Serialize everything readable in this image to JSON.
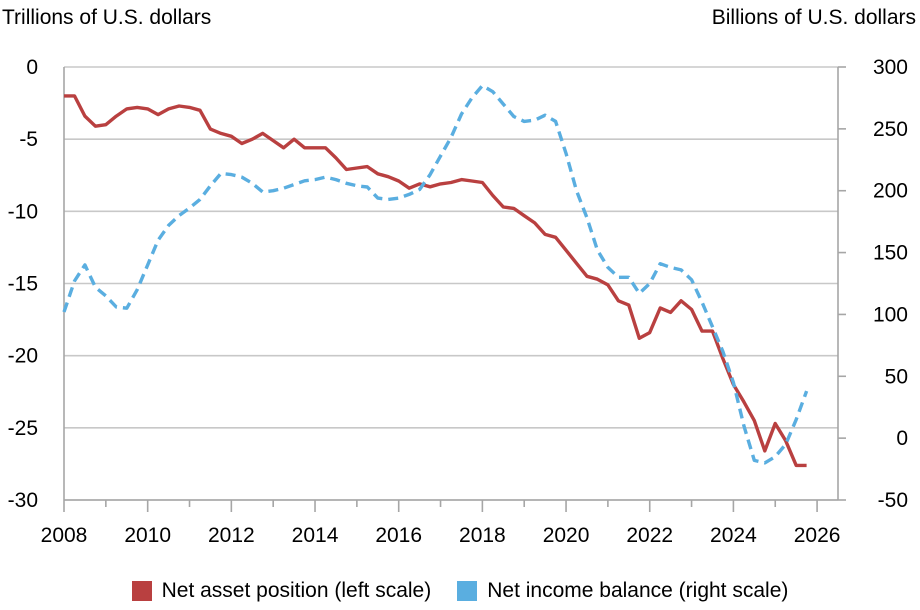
{
  "chart_data": {
    "type": "line",
    "left_axis_title": "Trillions of U.S. dollars",
    "right_axis_title": "Billions of U.S. dollars",
    "xlim": [
      2008,
      2026.5
    ],
    "xticks": [
      "2008",
      "2010",
      "2012",
      "2014",
      "2016",
      "2018",
      "2020",
      "2022",
      "2024",
      "2026"
    ],
    "ylim_left": [
      -30,
      0
    ],
    "yticks_left": [
      "0",
      "-5",
      "-10",
      "-15",
      "-20",
      "-25",
      "-30"
    ],
    "ylim_right": [
      -50,
      300
    ],
    "yticks_right": [
      "300",
      "250",
      "200",
      "150",
      "100",
      "50",
      "0",
      "-50"
    ],
    "grid": "horizontal",
    "legend_position": "bottom",
    "series": [
      {
        "name": "Net asset position (left scale)",
        "axis": "left",
        "color": "#b94040",
        "style": "solid",
        "x": [
          2008.0,
          2008.25,
          2008.5,
          2008.75,
          2009.0,
          2009.25,
          2009.5,
          2009.75,
          2010.0,
          2010.25,
          2010.5,
          2010.75,
          2011.0,
          2011.25,
          2011.5,
          2011.75,
          2012.0,
          2012.25,
          2012.5,
          2012.75,
          2013.0,
          2013.25,
          2013.5,
          2013.75,
          2014.0,
          2014.25,
          2014.5,
          2014.75,
          2015.0,
          2015.25,
          2015.5,
          2015.75,
          2016.0,
          2016.25,
          2016.5,
          2016.75,
          2017.0,
          2017.25,
          2017.5,
          2017.75,
          2018.0,
          2018.25,
          2018.5,
          2018.75,
          2019.0,
          2019.25,
          2019.5,
          2019.75,
          2020.0,
          2020.25,
          2020.5,
          2020.75,
          2021.0,
          2021.25,
          2021.5,
          2021.75,
          2022.0,
          2022.25,
          2022.5,
          2022.75,
          2023.0,
          2023.25,
          2023.5,
          2023.75,
          2024.0,
          2024.25,
          2024.5,
          2024.75,
          2025.0,
          2025.25,
          2025.5,
          2025.75
        ],
        "values": [
          -2.0,
          -2.0,
          -3.4,
          -4.1,
          -4.0,
          -3.4,
          -2.9,
          -2.8,
          -2.9,
          -3.3,
          -2.9,
          -2.7,
          -2.8,
          -3.0,
          -4.3,
          -4.6,
          -4.8,
          -5.3,
          -5.0,
          -4.6,
          -5.1,
          -5.6,
          -5.0,
          -5.6,
          -5.6,
          -5.6,
          -6.3,
          -7.1,
          -7.0,
          -6.9,
          -7.4,
          -7.6,
          -7.9,
          -8.4,
          -8.1,
          -8.3,
          -8.1,
          -8.0,
          -7.8,
          -7.9,
          -8.0,
          -8.9,
          -9.7,
          -9.8,
          -10.3,
          -10.8,
          -11.6,
          -11.8,
          -12.7,
          -13.6,
          -14.5,
          -14.7,
          -15.1,
          -16.2,
          -16.5,
          -18.8,
          -18.4,
          -16.7,
          -17.0,
          -16.2,
          -16.8,
          -18.3,
          -18.3,
          -20.2,
          -22.0,
          -23.2,
          -24.5,
          -26.6,
          -24.7,
          -25.9,
          -27.6,
          -27.6
        ]
      },
      {
        "name": "Net income balance (right scale)",
        "axis": "right",
        "color": "#5aaee0",
        "style": "dashed",
        "x": [
          2008.0,
          2008.25,
          2008.5,
          2008.75,
          2009.0,
          2009.25,
          2009.5,
          2009.75,
          2010.0,
          2010.25,
          2010.5,
          2010.75,
          2011.0,
          2011.25,
          2011.5,
          2011.75,
          2012.0,
          2012.25,
          2012.5,
          2012.75,
          2013.0,
          2013.25,
          2013.5,
          2013.75,
          2014.0,
          2014.25,
          2014.5,
          2014.75,
          2015.0,
          2015.25,
          2015.5,
          2015.75,
          2016.0,
          2016.25,
          2016.5,
          2016.75,
          2017.0,
          2017.25,
          2017.5,
          2017.75,
          2018.0,
          2018.25,
          2018.5,
          2018.75,
          2019.0,
          2019.25,
          2019.5,
          2019.75,
          2020.0,
          2020.25,
          2020.5,
          2020.75,
          2021.0,
          2021.25,
          2021.5,
          2021.75,
          2022.0,
          2022.25,
          2022.5,
          2022.75,
          2023.0,
          2023.25,
          2023.5,
          2023.75,
          2024.0,
          2024.25,
          2024.5,
          2024.75,
          2025.0,
          2025.25,
          2025.5,
          2025.75
        ],
        "values": [
          102,
          127,
          140,
          122,
          115,
          106,
          105,
          120,
          140,
          160,
          172,
          180,
          186,
          193,
          204,
          214,
          213,
          211,
          206,
          199,
          200,
          202,
          205,
          208,
          209,
          211,
          209,
          206,
          204,
          203,
          194,
          193,
          194,
          197,
          201,
          213,
          228,
          243,
          262,
          275,
          285,
          280,
          270,
          260,
          256,
          257,
          261,
          256,
          230,
          200,
          178,
          152,
          138,
          130,
          130,
          117,
          125,
          141,
          138,
          136,
          128,
          110,
          90,
          70,
          45,
          10,
          -18,
          -20,
          -15,
          -5,
          15,
          38
        ]
      }
    ]
  },
  "colors": {
    "grid": "#c8c8c8",
    "axis": "#a6a6a6"
  }
}
